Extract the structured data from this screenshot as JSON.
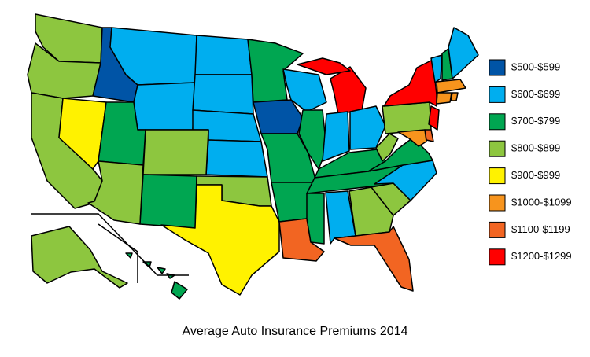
{
  "title": "Average Auto Insurance Premiums 2014",
  "legend": [
    {
      "label": "$500-$599",
      "color": "#0054a6"
    },
    {
      "label": "$600-$699",
      "color": "#00aeef"
    },
    {
      "label": "$700-$799",
      "color": "#00a651"
    },
    {
      "label": "$800-$899",
      "color": "#8dc63f"
    },
    {
      "label": "$900-$999",
      "color": "#fff200"
    },
    {
      "label": "$1000-$1099",
      "color": "#f7941d"
    },
    {
      "label": "$1100-$1199",
      "color": "#f26522"
    },
    {
      "label": "$1200-$1299",
      "color": "#ff0000"
    }
  ]
}
